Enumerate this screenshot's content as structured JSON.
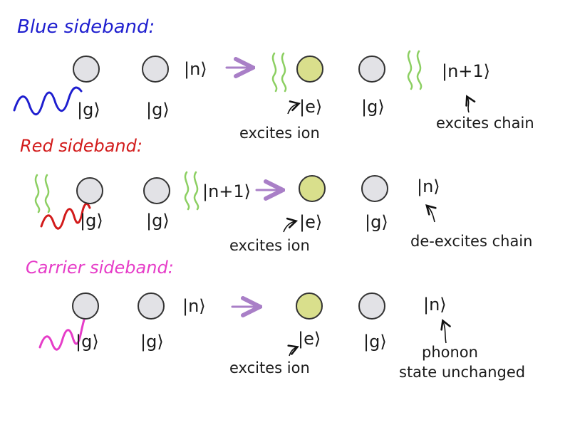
{
  "colors": {
    "blue_title": "#1e1ecf",
    "red_title": "#d21a1a",
    "pink_title": "#e63cc8",
    "ground_ion": "#e2e2e6",
    "excited_ion": "#d9df8c",
    "arrow": "#a97fc7",
    "phonon_wave": "#8ccf62",
    "ink": "#111111"
  },
  "rows": [
    {
      "id": "blue",
      "title": "Blue sideband:",
      "before": {
        "ion1": "|g⟩",
        "ion2": "|g⟩",
        "phonon": "|n⟩"
      },
      "after": {
        "ion1": "|e⟩",
        "ion2": "|g⟩",
        "phonon": "|n+1⟩"
      },
      "note_ion": "excites ion",
      "note_chain": "excites chain"
    },
    {
      "id": "red",
      "title": "Red sideband:",
      "before": {
        "ion1": "|g⟩",
        "ion2": "|g⟩",
        "phonon": "|n+1⟩"
      },
      "after": {
        "ion1": "|e⟩",
        "ion2": "|g⟩",
        "phonon": "|n⟩"
      },
      "note_ion": "excites ion",
      "note_chain": "de-excites chain"
    },
    {
      "id": "carrier",
      "title": "Carrier sideband:",
      "before": {
        "ion1": "|g⟩",
        "ion2": "|g⟩",
        "phonon": "|n⟩"
      },
      "after": {
        "ion1": "|e⟩",
        "ion2": "|g⟩",
        "phonon": "|n⟩"
      },
      "note_ion": "excites ion",
      "note_chain_line1": "phonon",
      "note_chain_line2": "state unchanged"
    }
  ]
}
